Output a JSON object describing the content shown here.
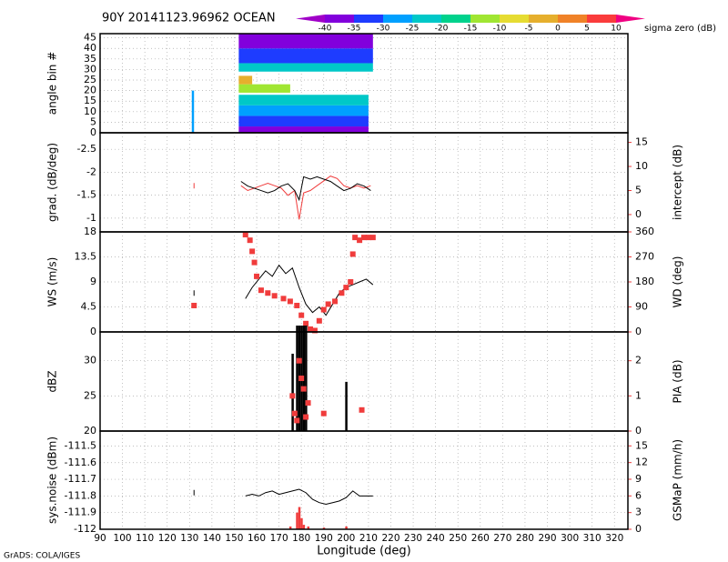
{
  "title": "90Y 20141123.96962 OCEAN",
  "footer": "GrADS: COLA/IGES",
  "x_axis": {
    "label": "Longitude (deg)",
    "xlim": [
      90,
      326
    ],
    "xticks": [
      90,
      100,
      110,
      120,
      130,
      140,
      150,
      160,
      170,
      180,
      190,
      200,
      210,
      220,
      230,
      240,
      250,
      260,
      270,
      280,
      290,
      300,
      310,
      320
    ]
  },
  "colorbar": {
    "label": "sigma zero (dB)",
    "levels": [
      -40,
      -35,
      -30,
      -25,
      -20,
      -15,
      -10,
      -5,
      0,
      5,
      10
    ],
    "colors": [
      "#a000c8",
      "#8200dc",
      "#1e3cff",
      "#00a0ff",
      "#00c8c8",
      "#00d28c",
      "#a0e632",
      "#e6dc32",
      "#e6af2d",
      "#f08228",
      "#fa3c3c",
      "#f00082"
    ]
  },
  "chart_data": [
    {
      "type": "heatmap",
      "ylabel": "angle bin #",
      "ylim": [
        0,
        47
      ],
      "yticks": [
        0,
        5,
        10,
        15,
        20,
        25,
        30,
        35,
        40,
        45
      ],
      "grid": true,
      "cells": [
        {
          "x": [
            152,
            210
          ],
          "y": [
            0,
            3
          ],
          "value": -38
        },
        {
          "x": [
            152,
            210
          ],
          "y": [
            3,
            8
          ],
          "value": -33
        },
        {
          "x": [
            152,
            210
          ],
          "y": [
            8,
            13
          ],
          "value": -28
        },
        {
          "x": [
            152,
            210
          ],
          "y": [
            13,
            18
          ],
          "value": -23
        },
        {
          "x": [
            152,
            175
          ],
          "y": [
            19,
            23
          ],
          "value": -12
        },
        {
          "x": [
            152,
            158
          ],
          "y": [
            23,
            27
          ],
          "value": -3
        },
        {
          "x": [
            152,
            212
          ],
          "y": [
            29,
            33
          ],
          "value": -22
        },
        {
          "x": [
            152,
            212
          ],
          "y": [
            33,
            40
          ],
          "value": -33
        },
        {
          "x": [
            152,
            212
          ],
          "y": [
            40,
            47
          ],
          "value": -38
        },
        {
          "x": [
            131,
            132
          ],
          "y": [
            0,
            20
          ],
          "value": -28
        }
      ]
    },
    {
      "type": "line",
      "ylabel": "grad. (dB/deg)",
      "y2label": "intercept (dB)",
      "ylim": [
        -0.7,
        -2.86
      ],
      "yticks": [
        -1,
        -1.5,
        -2,
        -2.5
      ],
      "y2lim": [
        -3.6,
        17
      ],
      "y2ticks": [
        0,
        5,
        10,
        15
      ],
      "grid": true,
      "series": [
        {
          "color": "#f03c3c",
          "axis": "y2",
          "style": "line",
          "x": [
            132,
            140,
            153,
            156,
            159,
            162,
            165,
            168,
            171,
            174,
            177,
            179,
            181,
            184,
            187,
            190,
            193,
            196,
            199,
            202,
            205,
            208,
            211
          ],
          "values": [
            6,
            null,
            6,
            5,
            5.5,
            6,
            6.5,
            6,
            5.5,
            4,
            5,
            -1,
            4.5,
            5,
            6,
            7,
            8,
            7.5,
            6,
            5.5,
            6,
            5.5,
            6
          ]
        },
        {
          "color": "#000000",
          "style": "line",
          "x": [
            153,
            156,
            159,
            162,
            165,
            168,
            171,
            174,
            177,
            179,
            181,
            184,
            187,
            190,
            193,
            196,
            199,
            202,
            205,
            208,
            211
          ],
          "values": [
            -1.8,
            -1.7,
            -1.65,
            -1.6,
            -1.55,
            -1.6,
            -1.7,
            -1.75,
            -1.6,
            -1.4,
            -1.9,
            -1.85,
            -1.9,
            -1.85,
            -1.8,
            -1.7,
            -1.6,
            -1.65,
            -1.75,
            -1.7,
            -1.6
          ]
        }
      ]
    },
    {
      "type": "line",
      "ylabel": "WS (m/s)",
      "y2label": "WD (deg)",
      "ylim": [
        0,
        18
      ],
      "yticks": [
        0,
        4.5,
        9,
        13.5,
        18
      ],
      "y2lim": [
        0,
        360
      ],
      "y2ticks": [
        0,
        90,
        180,
        270,
        360
      ],
      "grid": true,
      "series": [
        {
          "color": "#000000",
          "style": "line",
          "x": [
            132,
            140,
            155,
            158,
            161,
            164,
            167,
            170,
            173,
            176,
            179,
            182,
            185,
            188,
            191,
            194,
            197,
            200,
            203,
            206,
            209,
            212
          ],
          "values": [
            7,
            null,
            6,
            8,
            9.5,
            11,
            10,
            12,
            10.5,
            11.5,
            8,
            5,
            3.5,
            4.5,
            3,
            5,
            7,
            8,
            8.5,
            9,
            9.5,
            8.5
          ]
        },
        {
          "color": "#f03c3c",
          "axis": "y2",
          "style": "points",
          "x": [
            132,
            155,
            157,
            158,
            159,
            160,
            162,
            165,
            168,
            172,
            175,
            178,
            180,
            182,
            184,
            186,
            188,
            190,
            192,
            195,
            198,
            200,
            202,
            203,
            204,
            206,
            208,
            210,
            212
          ],
          "values": [
            95,
            350,
            330,
            290,
            250,
            200,
            150,
            140,
            130,
            120,
            110,
            95,
            60,
            30,
            10,
            5,
            40,
            80,
            100,
            110,
            140,
            160,
            180,
            280,
            340,
            330,
            340,
            340,
            340
          ]
        }
      ]
    },
    {
      "type": "line",
      "ylabel": "dBZ",
      "y2label": "PIA (dB)",
      "ylim": [
        20,
        34.1
      ],
      "yticks": [
        20,
        25,
        30
      ],
      "y2lim": [
        0,
        2.82
      ],
      "y2ticks": [
        0,
        1,
        2
      ],
      "grid": true,
      "series": [
        {
          "color": "#000000",
          "style": "bars",
          "x": [
            176,
            178,
            179,
            180,
            181,
            182,
            200
          ],
          "values": [
            31,
            35,
            35,
            35,
            35,
            35,
            27
          ]
        },
        {
          "color": "#f03c3c",
          "axis": "y2",
          "style": "points",
          "x": [
            176,
            177,
            178,
            179,
            180,
            181,
            182,
            183,
            190,
            207
          ],
          "values": [
            1,
            0.5,
            0.3,
            2,
            1.5,
            1.2,
            0.4,
            0.8,
            0.5,
            0.6
          ]
        }
      ]
    },
    {
      "type": "line",
      "ylabel": "sys.noise (dBm)",
      "y2label": "GSMaP (mm/h)",
      "ylim": [
        -112,
        -111.41
      ],
      "yticks": [
        -112,
        -111.9,
        -111.8,
        -111.7,
        -111.6,
        -111.5
      ],
      "y2lim": [
        0,
        17.67
      ],
      "y2ticks": [
        0,
        3,
        6,
        9,
        12,
        15
      ],
      "grid": true,
      "series": [
        {
          "color": "#000000",
          "style": "line",
          "x": [
            132,
            140,
            155,
            158,
            161,
            164,
            167,
            170,
            173,
            176,
            179,
            182,
            185,
            188,
            191,
            194,
            197,
            200,
            203,
            206,
            209,
            212
          ],
          "values": [
            -111.78,
            null,
            -111.8,
            -111.79,
            -111.8,
            -111.78,
            -111.77,
            -111.79,
            -111.78,
            -111.77,
            -111.76,
            -111.78,
            -111.82,
            -111.84,
            -111.85,
            -111.84,
            -111.83,
            -111.81,
            -111.77,
            -111.8,
            -111.8,
            -111.8
          ]
        },
        {
          "color": "#f03c3c",
          "axis": "y2",
          "style": "bars",
          "x": [
            175,
            178,
            179,
            180,
            181,
            183,
            190,
            200
          ],
          "values": [
            0.5,
            3,
            4,
            2,
            0.8,
            0.5,
            0.3,
            0.5
          ]
        }
      ]
    }
  ]
}
